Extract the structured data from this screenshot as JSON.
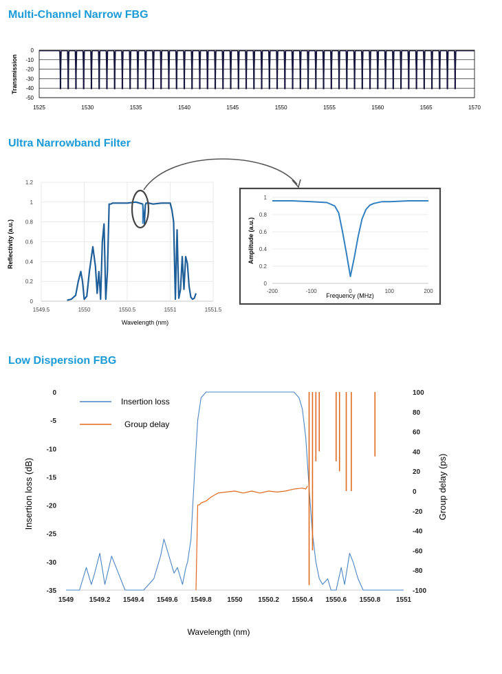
{
  "sections": {
    "multi": {
      "title": "Multi-Channel Narrow FBG"
    },
    "ultra": {
      "title": "Ultra Narrowband Filter"
    },
    "low": {
      "title": "Low Dispersion FBG"
    }
  },
  "chart_data": [
    {
      "type": "line",
      "title": "",
      "xlabel": "",
      "ylabel": "Transmission",
      "xlim": [
        1525,
        1570
      ],
      "ylim": [
        -50,
        0
      ],
      "x_ticks": [
        "1525",
        "1530",
        "1535",
        "1540",
        "1545",
        "1550",
        "1555",
        "1560",
        "1565",
        "1570"
      ],
      "y_ticks": [
        "0",
        "-10",
        "-20",
        "-30",
        "-40",
        "-50"
      ],
      "grid": true,
      "series": [
        {
          "color": "#14143c",
          "notch_centers_nm": [
            1527.2,
            1528.0,
            1528.8,
            1529.6,
            1530.4,
            1531.2,
            1532.0,
            1532.8,
            1533.6,
            1534.4,
            1535.2,
            1536.0,
            1536.8,
            1537.6,
            1538.4,
            1539.2,
            1540.0,
            1540.8,
            1541.6,
            1542.4,
            1543.2,
            1544.0,
            1544.8,
            1545.6,
            1546.4,
            1547.2,
            1548.0,
            1548.8,
            1549.6,
            1550.4,
            1551.2,
            1552.0,
            1552.8,
            1553.6,
            1554.4,
            1555.2,
            1556.0,
            1556.8,
            1557.6,
            1558.4,
            1559.2,
            1560.0,
            1560.8,
            1561.6,
            1562.4,
            1563.2,
            1564.0,
            1564.8,
            1565.6,
            1566.4,
            1567.2,
            1568.0
          ],
          "notch_depth": -41
        }
      ]
    },
    {
      "type": "line",
      "title": "",
      "xlabel": "Wavelength (nm)",
      "ylabel": "Reflectivity (a.u.)",
      "xlim": [
        1549.5,
        1551.5
      ],
      "ylim": [
        0,
        1.2
      ],
      "x_ticks": [
        "1549.5",
        "1550",
        "1550.5",
        "1551",
        "1551.5"
      ],
      "y_ticks": [
        "0",
        "0.2",
        "0.4",
        "0.6",
        "0.8",
        "1",
        "1.2"
      ],
      "grid": true,
      "series": [
        {
          "color": "#1f5f99",
          "x": [
            1549.8,
            1549.85,
            1549.9,
            1549.93,
            1549.96,
            1549.98,
            1550.0,
            1550.03,
            1550.06,
            1550.1,
            1550.13,
            1550.15,
            1550.17,
            1550.19,
            1550.21,
            1550.23,
            1550.25,
            1550.27,
            1550.29,
            1550.31,
            1550.33,
            1550.36,
            1550.4,
            1550.5,
            1550.6,
            1550.68,
            1550.7,
            1550.71,
            1550.72,
            1550.75,
            1550.8,
            1550.9,
            1550.97,
            1551.0,
            1551.02,
            1551.04,
            1551.06,
            1551.08,
            1551.1,
            1551.12,
            1551.14,
            1551.16,
            1551.18,
            1551.2,
            1551.22,
            1551.24,
            1551.26,
            1551.28,
            1551.3
          ],
          "y": [
            0.01,
            0.02,
            0.06,
            0.2,
            0.3,
            0.2,
            0.02,
            0.05,
            0.3,
            0.55,
            0.35,
            0.08,
            0.3,
            0.02,
            0.6,
            0.78,
            0.02,
            0.3,
            0.98,
            0.98,
            0.99,
            0.99,
            0.99,
            0.99,
            1.0,
            0.98,
            0.78,
            0.97,
            0.99,
            0.99,
            0.98,
            0.99,
            0.99,
            0.99,
            0.92,
            0.8,
            0.02,
            0.72,
            0.03,
            0.12,
            0.45,
            0.12,
            0.45,
            0.38,
            0.15,
            0.04,
            0.02,
            0.03,
            0.08
          ]
        }
      ]
    },
    {
      "type": "line",
      "title": "",
      "xlabel": "Frequency (MHz)",
      "ylabel": "Amplitude (a.u.)",
      "xlim": [
        -200,
        200
      ],
      "ylim": [
        0,
        1
      ],
      "x_ticks": [
        "-200",
        "-100",
        "0",
        "100",
        "200"
      ],
      "y_ticks": [
        "0",
        "0.2",
        "0.4",
        "0.6",
        "0.8",
        "1"
      ],
      "grid": true,
      "series": [
        {
          "color": "#2f7fc1",
          "x": [
            -200,
            -150,
            -100,
            -60,
            -40,
            -30,
            -20,
            -10,
            0,
            10,
            20,
            30,
            40,
            50,
            60,
            80,
            100,
            150,
            200
          ],
          "y": [
            0.96,
            0.96,
            0.95,
            0.94,
            0.9,
            0.82,
            0.6,
            0.35,
            0.08,
            0.3,
            0.55,
            0.75,
            0.86,
            0.91,
            0.93,
            0.95,
            0.95,
            0.96,
            0.96
          ]
        }
      ]
    },
    {
      "type": "line",
      "title": "",
      "xlabel": "Wavelength (nm)",
      "ylabel": "Insertion loss (dB)",
      "y2label": "Group delay (ps)",
      "xlim": [
        1549,
        1551
      ],
      "ylim": [
        -35,
        0
      ],
      "y2lim": [
        -100,
        100
      ],
      "x_ticks": [
        "1549",
        "1549.2",
        "1549.4",
        "1549.6",
        "1549.8",
        "1550",
        "1550.2",
        "1550.4",
        "1550.6",
        "1550.8",
        "1551"
      ],
      "y_ticks": [
        "0",
        "-5",
        "-10",
        "-15",
        "-20",
        "-25",
        "-30",
        "-35"
      ],
      "y2_ticks": [
        "100",
        "80",
        "60",
        "40",
        "20",
        "0",
        "-20",
        "-40",
        "-60",
        "-80",
        "-100"
      ],
      "legend_position": "top-left",
      "grid": false,
      "series": [
        {
          "name": "Insertion loss",
          "color": "#4a84c4",
          "axis": "left",
          "x": [
            1549.0,
            1549.04,
            1549.08,
            1549.12,
            1549.15,
            1549.17,
            1549.2,
            1549.23,
            1549.27,
            1549.31,
            1549.35,
            1549.4,
            1549.46,
            1549.52,
            1549.56,
            1549.58,
            1549.61,
            1549.64,
            1549.66,
            1549.69,
            1549.71,
            1549.72,
            1549.74,
            1549.76,
            1549.78,
            1549.8,
            1549.83,
            1549.87,
            1550.0,
            1550.2,
            1550.35,
            1550.38,
            1550.4,
            1550.42,
            1550.44,
            1550.46,
            1550.48,
            1550.5,
            1550.52,
            1550.55,
            1550.57,
            1550.6,
            1550.63,
            1550.65,
            1550.68,
            1550.7,
            1550.73,
            1550.76,
            1550.8,
            1550.85,
            1550.9,
            1550.95,
            1551.0
          ],
          "y": [
            -35,
            -35,
            -35,
            -31,
            -34,
            -32,
            -28.5,
            -34,
            -29,
            -32,
            -35,
            -35,
            -35,
            -33,
            -29,
            -26,
            -29,
            -32,
            -31,
            -34,
            -31,
            -30,
            -26,
            -15,
            -5,
            -1,
            0,
            0,
            0,
            0,
            0,
            -1,
            -3,
            -8,
            -17,
            -25,
            -30,
            -33,
            -34,
            -33,
            -35,
            -35,
            -31,
            -34,
            -28.5,
            -30,
            -33,
            -35,
            -35,
            -35,
            -35,
            -35,
            -35
          ]
        },
        {
          "name": "Group delay",
          "color": "#e06a1b",
          "axis": "right",
          "x": [
            1549.77,
            1549.78,
            1549.79,
            1549.8,
            1549.83,
            1549.86,
            1549.9,
            1549.95,
            1550.0,
            1550.05,
            1550.1,
            1550.15,
            1550.2,
            1550.25,
            1550.3,
            1550.35,
            1550.4,
            1550.42,
            1550.43
          ],
          "y": [
            -100,
            -14,
            -14,
            -12,
            -10,
            -6,
            -2,
            -1,
            0,
            -2,
            0,
            -2,
            0,
            -1,
            0,
            2,
            3,
            2,
            5
          ]
        }
      ]
    }
  ]
}
